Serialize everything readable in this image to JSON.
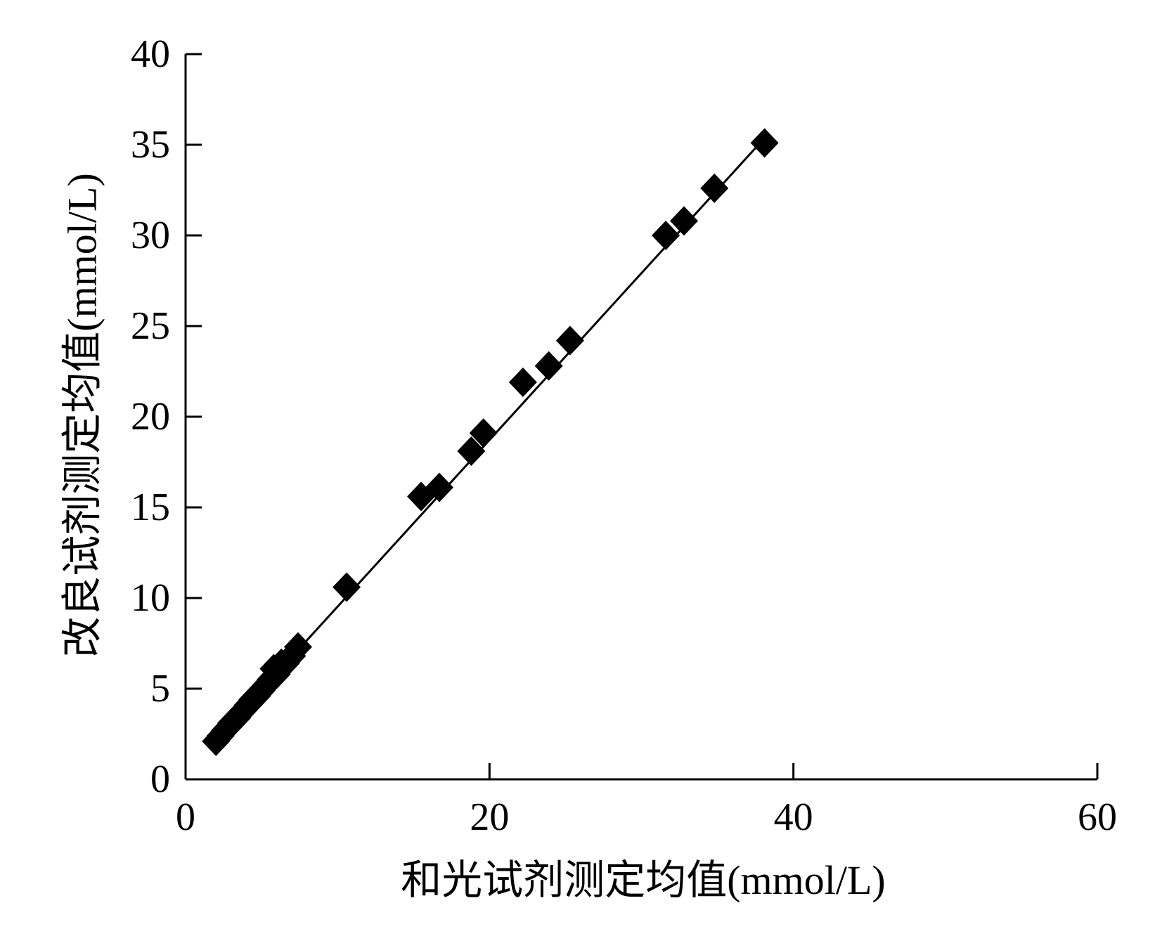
{
  "chart_data": {
    "type": "scatter",
    "xlabel": "和光试剂测定均值(mmol/L)",
    "ylabel": "改良试剂测定均值(mmol/L)",
    "xlim": [
      0,
      60
    ],
    "ylim": [
      0,
      40
    ],
    "xticks": [
      0,
      20,
      40,
      60
    ],
    "yticks": [
      0,
      5,
      10,
      15,
      20,
      25,
      30,
      35,
      40
    ],
    "grid": false,
    "marker": "diamond",
    "marker_color": "#000000",
    "series": [
      {
        "x": [
          2.0,
          2.3,
          2.6,
          3.0,
          3.4,
          3.8,
          4.1,
          4.4,
          4.7,
          5.0,
          5.3,
          5.6,
          5.8,
          6.0,
          6.3,
          6.6,
          7.0,
          7.4,
          10.6,
          15.5,
          16.7,
          18.8,
          19.6,
          22.2,
          23.9,
          25.3,
          31.6,
          32.8,
          34.8,
          38.1
        ],
        "y": [
          2.1,
          2.4,
          2.7,
          3.1,
          3.4,
          3.8,
          4.1,
          4.4,
          4.6,
          4.9,
          5.2,
          5.5,
          6.1,
          5.8,
          6.4,
          6.4,
          6.8,
          7.3,
          10.6,
          15.6,
          16.1,
          18.1,
          19.1,
          21.9,
          22.8,
          24.2,
          30.0,
          30.8,
          32.6,
          35.1
        ]
      }
    ],
    "trendline": {
      "x": [
        1.8,
        38.2
      ],
      "y": [
        1.98,
        35.46
      ]
    }
  }
}
